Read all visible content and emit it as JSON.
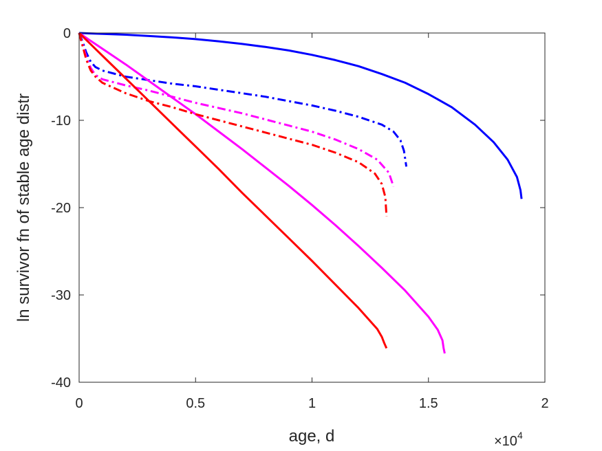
{
  "chart_data": {
    "type": "line",
    "title": "",
    "xlabel": "age, d",
    "ylabel": "ln survivor fn of stable age distr",
    "x_multiplier": {
      "base": "×10",
      "exponent": "4"
    },
    "xlim": [
      0,
      20000
    ],
    "ylim": [
      -40,
      0
    ],
    "xticks": [
      0,
      5000,
      10000,
      15000,
      20000
    ],
    "xtick_labels": [
      "0",
      "0.5",
      "1",
      "1.5",
      "2"
    ],
    "yticks": [
      0,
      -10,
      -20,
      -30,
      -40
    ],
    "ytick_labels": [
      "0",
      "-10",
      "-20",
      "-30",
      "-40"
    ],
    "grid": false,
    "legend": "none",
    "series": [
      {
        "color": "#0000ff",
        "style": "solid",
        "points": [
          [
            0,
            0
          ],
          [
            1000,
            -0.1
          ],
          [
            2000,
            -0.2
          ],
          [
            3000,
            -0.35
          ],
          [
            4000,
            -0.5
          ],
          [
            5000,
            -0.7
          ],
          [
            6000,
            -0.95
          ],
          [
            7000,
            -1.25
          ],
          [
            8000,
            -1.6
          ],
          [
            9000,
            -2.0
          ],
          [
            10000,
            -2.5
          ],
          [
            11000,
            -3.1
          ],
          [
            12000,
            -3.8
          ],
          [
            13000,
            -4.7
          ],
          [
            14000,
            -5.7
          ],
          [
            15000,
            -7.0
          ],
          [
            16000,
            -8.5
          ],
          [
            17000,
            -10.5
          ],
          [
            17800,
            -12.5
          ],
          [
            18400,
            -14.5
          ],
          [
            18800,
            -16.5
          ],
          [
            18950,
            -18
          ],
          [
            19000,
            -19
          ]
        ]
      },
      {
        "color": "#0000ff",
        "style": "dashdot",
        "points": [
          [
            0,
            0
          ],
          [
            150,
            -1
          ],
          [
            300,
            -2.2
          ],
          [
            500,
            -3.3
          ],
          [
            700,
            -3.9
          ],
          [
            1000,
            -4.3
          ],
          [
            2000,
            -5.0
          ],
          [
            3000,
            -5.4
          ],
          [
            4000,
            -5.8
          ],
          [
            5000,
            -6.1
          ],
          [
            6000,
            -6.5
          ],
          [
            7000,
            -6.9
          ],
          [
            8000,
            -7.3
          ],
          [
            9000,
            -7.8
          ],
          [
            10000,
            -8.3
          ],
          [
            11000,
            -8.9
          ],
          [
            12000,
            -9.6
          ],
          [
            13000,
            -10.5
          ],
          [
            13500,
            -11.3
          ],
          [
            13800,
            -12.3
          ],
          [
            13950,
            -13.5
          ],
          [
            14050,
            -15.3
          ]
        ]
      },
      {
        "color": "#ff00ff",
        "style": "solid",
        "points": [
          [
            0,
            0
          ],
          [
            1000,
            -1.8
          ],
          [
            2000,
            -3.6
          ],
          [
            3000,
            -5.5
          ],
          [
            4000,
            -7.4
          ],
          [
            5000,
            -9.3
          ],
          [
            6000,
            -11.3
          ],
          [
            7000,
            -13.3
          ],
          [
            8000,
            -15.4
          ],
          [
            9000,
            -17.5
          ],
          [
            10000,
            -19.7
          ],
          [
            11000,
            -22.0
          ],
          [
            12000,
            -24.4
          ],
          [
            13000,
            -26.9
          ],
          [
            14000,
            -29.5
          ],
          [
            15000,
            -32.5
          ],
          [
            15400,
            -34
          ],
          [
            15600,
            -35.2
          ],
          [
            15650,
            -36.1
          ],
          [
            15700,
            -36.7
          ]
        ]
      },
      {
        "color": "#ff00ff",
        "style": "dashdot",
        "points": [
          [
            0,
            0
          ],
          [
            150,
            -1.3
          ],
          [
            300,
            -2.7
          ],
          [
            500,
            -4.0
          ],
          [
            700,
            -4.8
          ],
          [
            1000,
            -5.3
          ],
          [
            2000,
            -6.0
          ],
          [
            3000,
            -6.6
          ],
          [
            4000,
            -7.3
          ],
          [
            5000,
            -8.0
          ],
          [
            6000,
            -8.6
          ],
          [
            7000,
            -9.2
          ],
          [
            8000,
            -9.9
          ],
          [
            9000,
            -10.6
          ],
          [
            10000,
            -11.3
          ],
          [
            11000,
            -12.2
          ],
          [
            12000,
            -13.3
          ],
          [
            12800,
            -14.5
          ],
          [
            13300,
            -16.0
          ],
          [
            13500,
            -17.6
          ]
        ]
      },
      {
        "color": "#ff0000",
        "style": "solid",
        "points": [
          [
            0,
            0
          ],
          [
            1000,
            -2.6
          ],
          [
            2000,
            -5.2
          ],
          [
            3000,
            -7.8
          ],
          [
            4000,
            -10.4
          ],
          [
            5000,
            -13.0
          ],
          [
            6000,
            -15.6
          ],
          [
            7000,
            -18.3
          ],
          [
            8000,
            -20.9
          ],
          [
            9000,
            -23.5
          ],
          [
            10000,
            -26.1
          ],
          [
            11000,
            -28.8
          ],
          [
            12000,
            -31.5
          ],
          [
            12800,
            -33.9
          ],
          [
            13000,
            -34.8
          ],
          [
            13100,
            -35.5
          ],
          [
            13200,
            -36.1
          ]
        ]
      },
      {
        "color": "#ff0000",
        "style": "dashdot",
        "points": [
          [
            0,
            0
          ],
          [
            150,
            -1.5
          ],
          [
            300,
            -3.0
          ],
          [
            500,
            -4.3
          ],
          [
            700,
            -5.0
          ],
          [
            1000,
            -5.7
          ],
          [
            2000,
            -6.9
          ],
          [
            3000,
            -7.8
          ],
          [
            4000,
            -8.5
          ],
          [
            5000,
            -9.3
          ],
          [
            6000,
            -10.0
          ],
          [
            7000,
            -10.7
          ],
          [
            8000,
            -11.4
          ],
          [
            9000,
            -12.1
          ],
          [
            10000,
            -12.8
          ],
          [
            11000,
            -13.7
          ],
          [
            12000,
            -14.8
          ],
          [
            12700,
            -16.1
          ],
          [
            13000,
            -17.3
          ],
          [
            13150,
            -18.8
          ],
          [
            13200,
            -21
          ]
        ]
      }
    ]
  }
}
